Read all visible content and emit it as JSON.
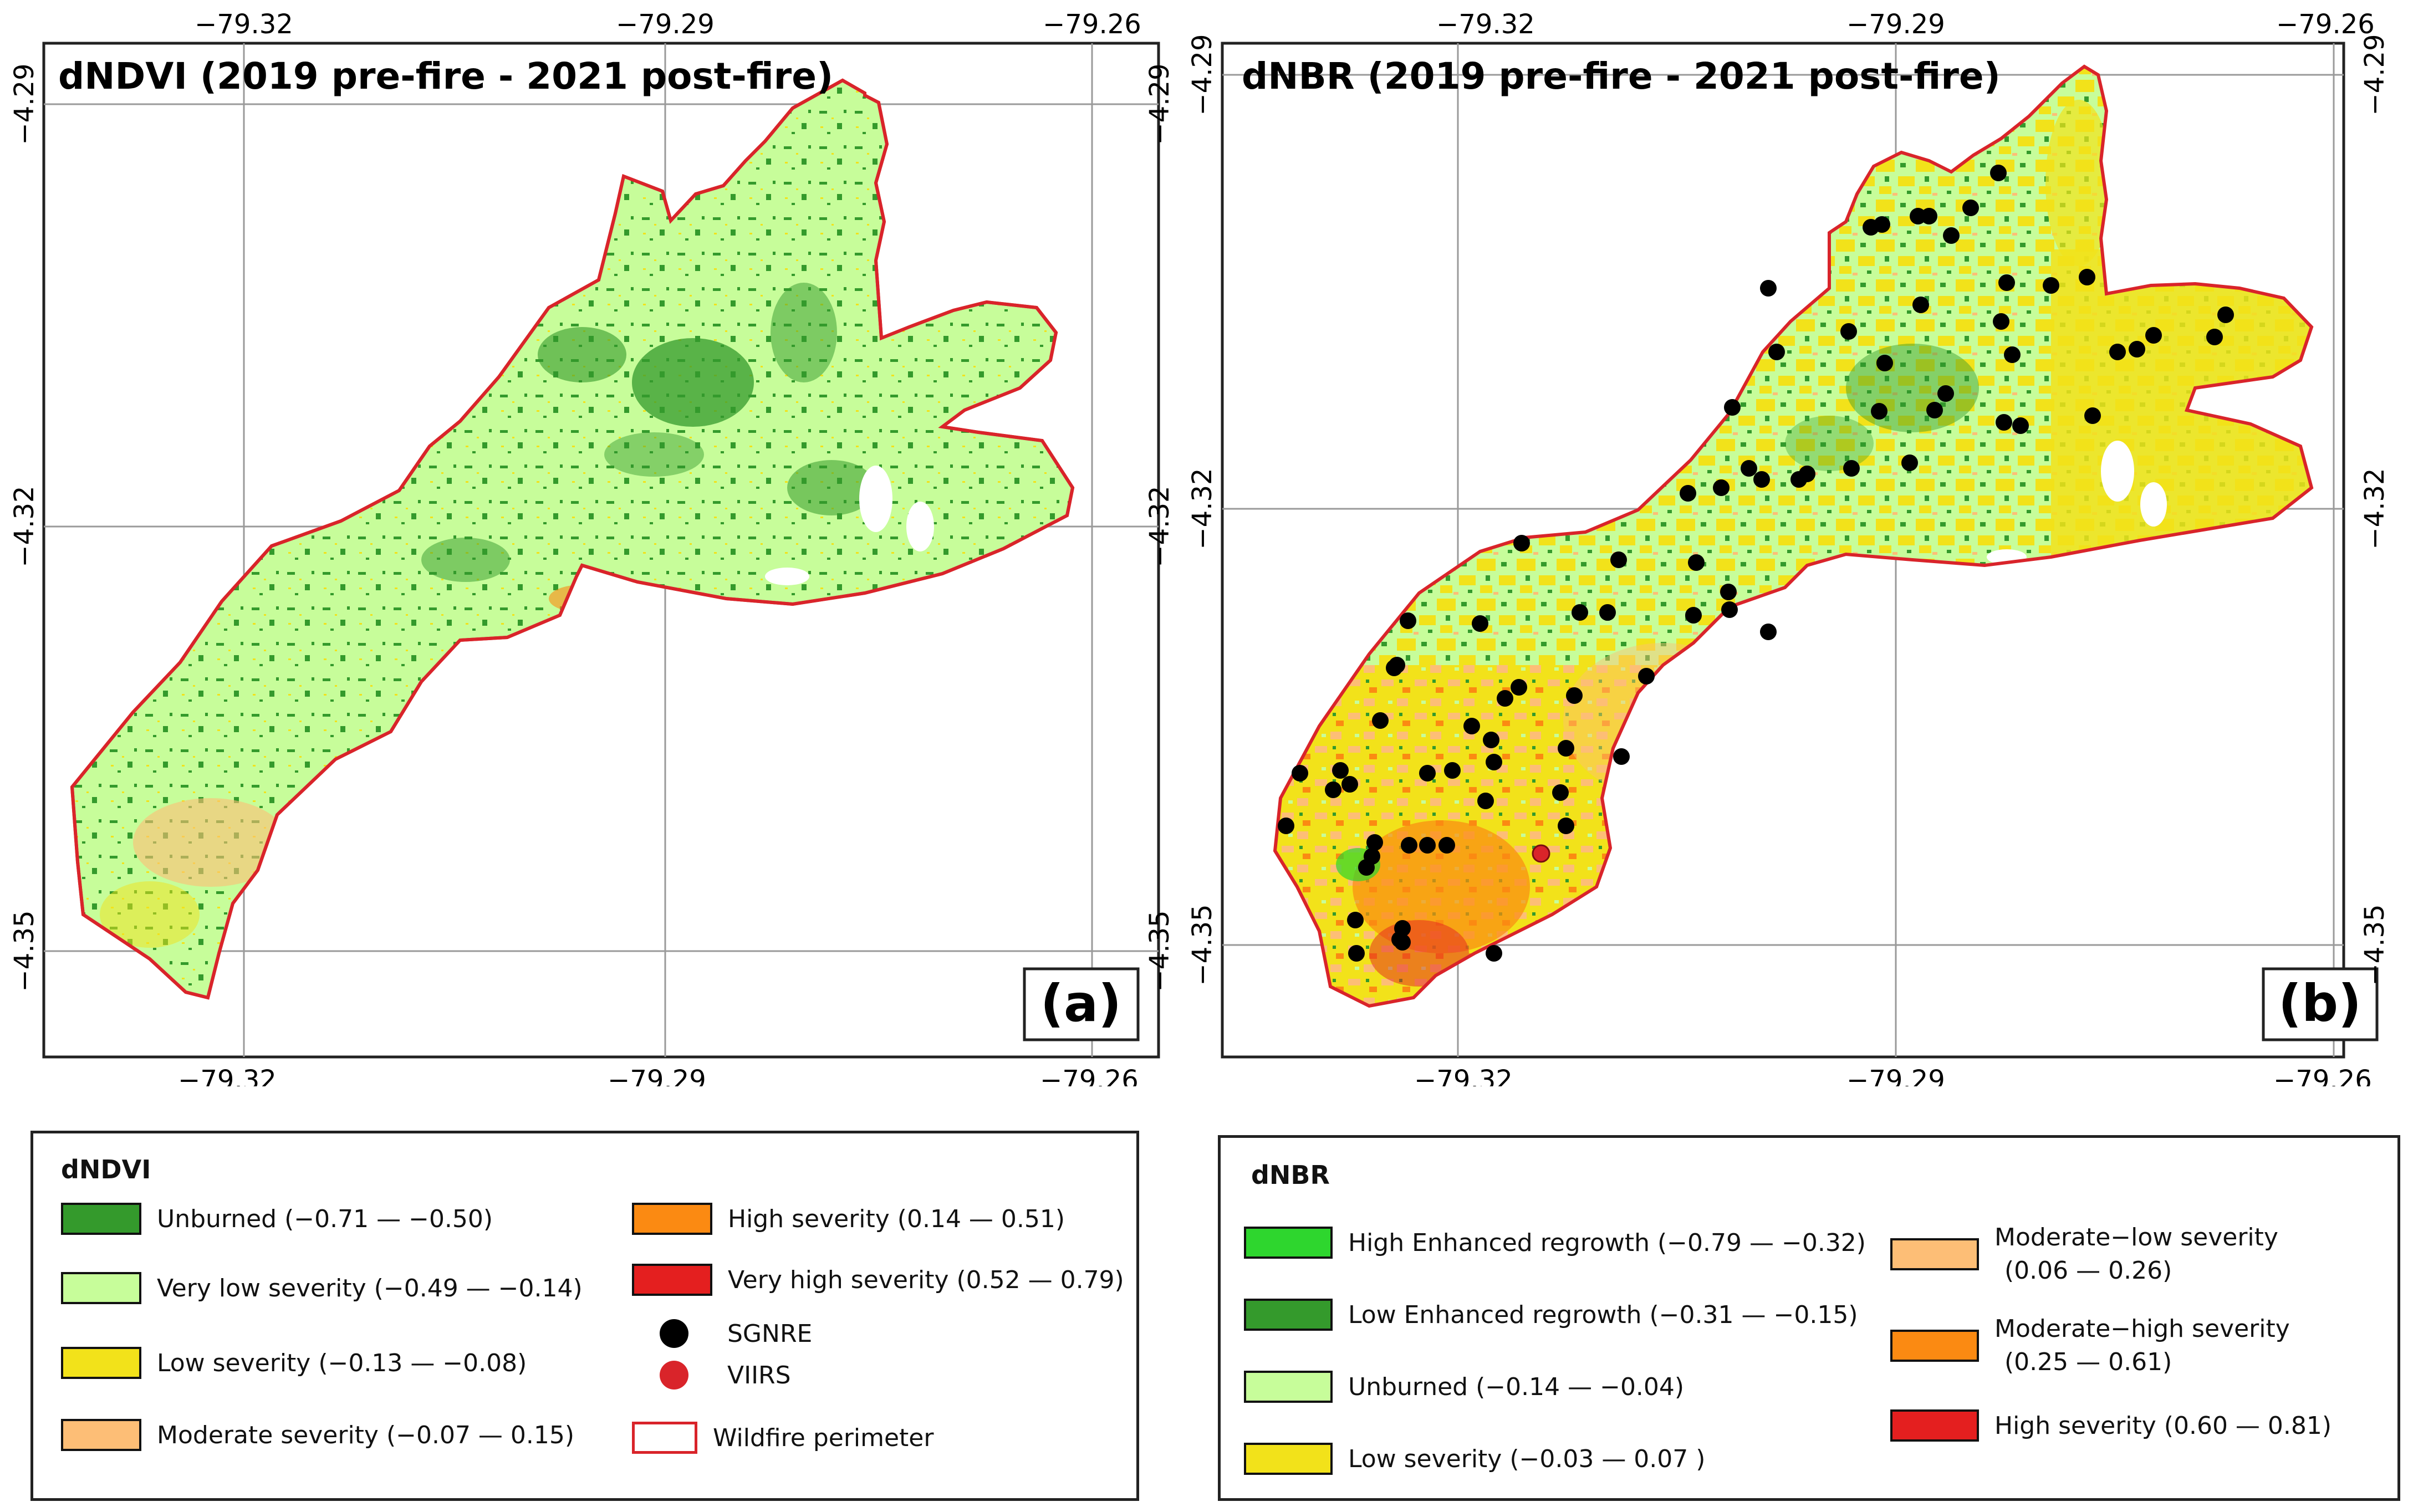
{
  "colors": {
    "dark_green": "#349a2c",
    "light_green": "#c7fd9a",
    "bright_green": "#2ed62e",
    "yellow": "#f2e21a",
    "peach": "#fdbe76",
    "orange": "#fb8a12",
    "red": "#e41f1f",
    "perimeter": "#d9242a",
    "sgnre": "#000000",
    "viirs": "#d9242a"
  },
  "axes": {
    "lon_ticks": [
      "−79.32",
      "−79.29",
      "−79.26"
    ],
    "lat_ticks": [
      "−4.29",
      "−4.32",
      "−4.35"
    ]
  },
  "panel_a": {
    "title": "dNDVI (2019 pre-fire - 2021 post-fire)",
    "label": "(a)"
  },
  "panel_b": {
    "title": "dNBR (2019 pre-fire - 2021 post-fire)",
    "label": "(b)"
  },
  "legend_a": {
    "title": "dNDVI",
    "items": [
      {
        "label": "Unburned  (−0.71 — −0.50)",
        "color": "#349a2c"
      },
      {
        "label": "Very low severity (−0.49 — −0.14)",
        "color": "#c7fd9a"
      },
      {
        "label": "Low severity  (−0.13 — −0.08)",
        "color": "#f2e21a"
      },
      {
        "label": "Moderate severity  (−0.07 — 0.15)",
        "color": "#fdbe76"
      },
      {
        "label": "High severity (0.14 — 0.51)",
        "color": "#fb8a12"
      },
      {
        "label": "Very high severity (0.52 — 0.79)",
        "color": "#e41f1f"
      }
    ],
    "sgnre": "SGNRE",
    "viirs": "VIIRS",
    "perimeter": "Wildfire perimeter"
  },
  "legend_b": {
    "title": "dNBR",
    "items": [
      {
        "label": "High Enhanced regrowth   (−0.79 — −0.32)",
        "color": "#2ed62e"
      },
      {
        "label": "Low Enhanced regrowth  (−0.31 — −0.15)",
        "color": "#349a2c"
      },
      {
        "label": "Unburned (−0.14 — −0.04)",
        "color": "#c7fd9a"
      },
      {
        "label": "Low severity (−0.03 — 0.07 )",
        "color": "#f2e21a"
      }
    ],
    "items2": [
      {
        "line1": "Moderate−low       severity",
        "line2": "(0.06 — 0.26)",
        "color": "#fdbe76"
      },
      {
        "line1": "Moderate−high       severity",
        "line2": "(0.25 — 0.61)",
        "color": "#fb8a12"
      },
      {
        "line1": "High severity  (0.60 — 0.81)",
        "line2": "",
        "color": "#e41f1f"
      }
    ]
  }
}
